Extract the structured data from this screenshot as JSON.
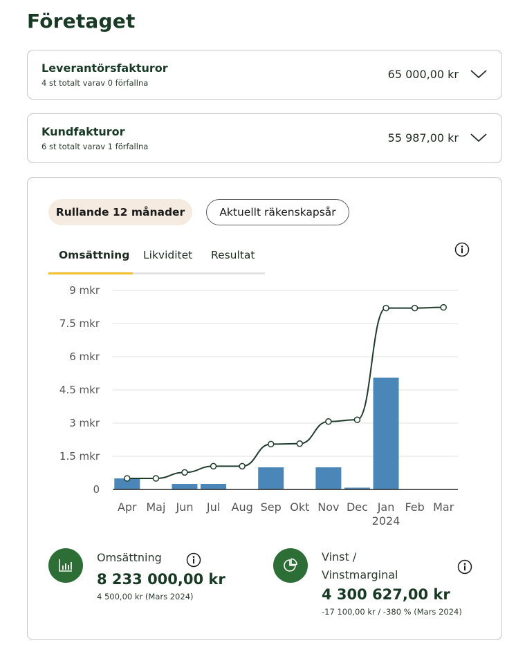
{
  "page": {
    "title": "Företaget"
  },
  "invoices": [
    {
      "title": "Leverantörsfakturor",
      "subtitle": "4 st totalt varav 0 förfallna",
      "amount": "65 000,00 kr"
    },
    {
      "title": "Kundfakturor",
      "subtitle": "6 st totalt varav 1 förfallna",
      "amount": "55 987,00 kr"
    }
  ],
  "period_toggle": {
    "active": "Rullande 12 månader",
    "other": "Aktuellt räkenskapsår"
  },
  "tabs": [
    "Omsättning",
    "Likviditet",
    "Resultat"
  ],
  "chart_data": {
    "type": "bar",
    "categories": [
      "Apr",
      "Maj",
      "Jun",
      "Jul",
      "Aug",
      "Sep",
      "Okt",
      "Nov",
      "Dec",
      "Jan",
      "Feb",
      "Mar"
    ],
    "category_sublabels": {
      "Jan": "2024"
    },
    "series": [
      {
        "type": "bar",
        "values": [
          0.5,
          0,
          0.25,
          0.25,
          0,
          1.0,
          0.02,
          1.0,
          0.08,
          5.05,
          0,
          0
        ]
      },
      {
        "type": "line",
        "values": [
          0.5,
          0.5,
          0.77,
          1.05,
          1.05,
          2.05,
          2.07,
          3.07,
          3.15,
          8.2,
          8.2,
          8.23
        ]
      }
    ],
    "ylim": [
      0,
      9
    ],
    "yticks": [
      0,
      1.5,
      3,
      4.5,
      6,
      7.5,
      9
    ],
    "ytick_labels": [
      "0",
      "1.5 mkr",
      "3 mkr",
      "4.5 mkr",
      "6 mkr",
      "7.5 mkr",
      "9 mkr"
    ],
    "grid": true,
    "colors": {
      "bar": "#4a86b8",
      "line": "#1e3a2a"
    }
  },
  "stats": [
    {
      "label": "Omsättning",
      "value": "8 233 000,00 kr",
      "sub": "4 500,00 kr (Mars 2024)",
      "icon": "bar-chart-icon"
    },
    {
      "label_line1": "Vinst /",
      "label_line2": "Vinstmarginal",
      "value": "4 300 627,00 kr",
      "sub": "-17 100,00 kr / -380 % (Mars 2024)",
      "icon": "pie-chart-icon"
    }
  ]
}
